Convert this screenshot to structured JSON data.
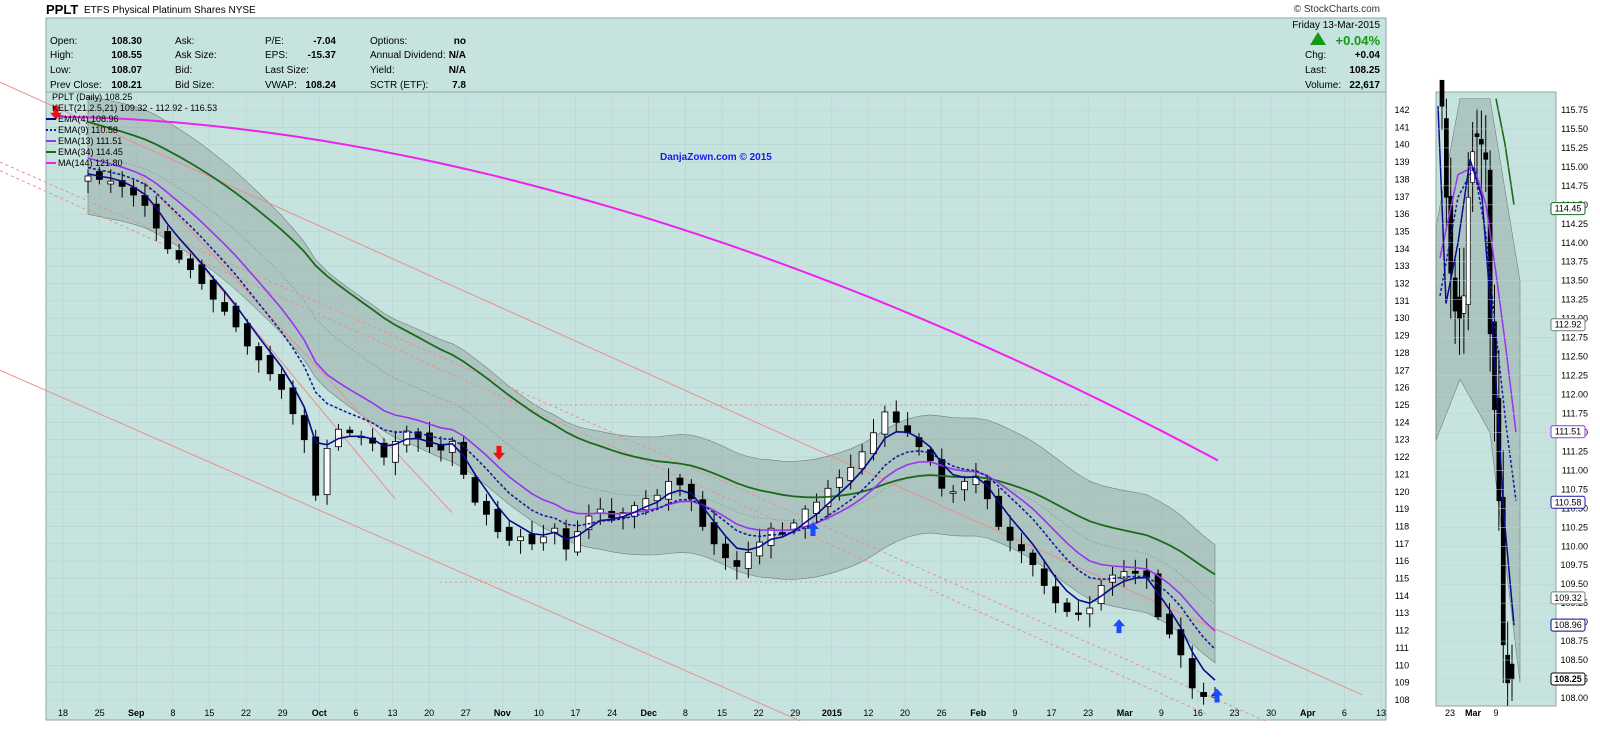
{
  "header": {
    "symbol": "PPLT",
    "name": "ETFS Physical Platinum Shares",
    "exchange": "NYSE",
    "source": "© StockCharts.com"
  },
  "quote": {
    "open_label": "Open:",
    "open": "108.30",
    "high_label": "High:",
    "high": "108.55",
    "low_label": "Low:",
    "low": "108.07",
    "prev_label": "Prev Close:",
    "prev": "108.21",
    "ask_label": "Ask:",
    "asksize_label": "Ask Size:",
    "bid_label": "Bid:",
    "bidsize_label": "Bid Size:",
    "pe_label": "P/E:",
    "pe": "-7.04",
    "eps_label": "EPS:",
    "eps": "-15.37",
    "lastsize_label": "Last Size:",
    "vwap_label": "VWAP:",
    "vwap": "108.24",
    "options_label": "Options:",
    "options": "no",
    "dividend_label": "Annual Dividend:",
    "dividend": "N/A",
    "yield_label": "Yield:",
    "yield": "N/A",
    "sctr_label": "SCTR (ETF):",
    "sctr": "7.8",
    "date": "Friday  13-Mar-2015",
    "change_pct": "+0.04%",
    "chg_label": "Chg:",
    "chg": "+0.04",
    "last_label": "Last:",
    "last": "108.25",
    "volume_label": "Volume:",
    "volume": "22,617"
  },
  "legend": {
    "title": "PPLT (Daily) 108.25",
    "kelt": "KELT(21,2.5,21) 109.32 - 112.92 - 116.53",
    "ema4": "EMA(4) 108.96",
    "ema9": "EMA(9) 110.58",
    "ema13": "EMA(13) 111.51",
    "ema34": "EMA(34) 114.45",
    "ma144": "MA(144) 121.80"
  },
  "watermark": "DanjaZown.com © 2015",
  "colors": {
    "bg": "#c7e3e0",
    "ema4": "#0a0a8c",
    "ema9": "#1a1a9c",
    "ema13": "#9933ee",
    "ema34": "#1a6a1a",
    "ma144": "#ee22ee",
    "channel": "#e8908a",
    "up_arrow": "#1a4cff",
    "down_arrow": "#ee1111",
    "band": "#8f9f9c"
  },
  "chart_data": [
    {
      "type": "candlestick",
      "title": "PPLT (Daily) 108.25",
      "ylim": [
        107.5,
        142.5
      ],
      "y_ticks": [
        108,
        109,
        110,
        111,
        112,
        113,
        114,
        115,
        116,
        117,
        118,
        119,
        120,
        121,
        122,
        123,
        124,
        125,
        126,
        127,
        128,
        129,
        130,
        131,
        132,
        133,
        134,
        135,
        136,
        137,
        138,
        139,
        140,
        141,
        142
      ],
      "x_ticks": [
        "18",
        "25",
        "Sep",
        "8",
        "15",
        "22",
        "29",
        "Oct",
        "6",
        "13",
        "20",
        "27",
        "Nov",
        "10",
        "17",
        "24",
        "Dec",
        "8",
        "15",
        "22",
        "29",
        "2015",
        "12",
        "20",
        "26",
        "Feb",
        "9",
        "17",
        "23",
        "Mar",
        "9",
        "16",
        "23",
        "30",
        "Apr",
        "6",
        "13"
      ],
      "close_series": [
        138.2,
        138.0,
        137.9,
        137.6,
        137.1,
        136.5,
        135.2,
        134.0,
        133.4,
        132.8,
        132.0,
        131.1,
        130.4,
        129.5,
        128.4,
        127.6,
        126.8,
        125.9,
        124.5,
        123.0,
        119.8,
        122.5,
        123.6,
        123.4,
        123.2,
        122.8,
        122.0,
        122.9,
        123.5,
        123.1,
        122.6,
        122.4,
        122.9,
        121.0,
        119.4,
        118.7,
        117.7,
        117.2,
        117.4,
        117.0,
        117.4,
        117.9,
        116.7,
        117.7,
        118.6,
        119.0,
        118.5,
        118.8,
        119.2,
        119.6,
        119.8,
        120.6,
        120.4,
        119.6,
        118.0,
        117.0,
        116.2,
        115.7,
        116.5,
        117.1,
        117.9,
        117.6,
        118.2,
        119.0,
        119.4,
        120.2,
        120.8,
        121.4,
        122.3,
        123.4,
        124.6,
        124.0,
        123.4,
        122.6,
        121.8,
        120.2,
        120.0,
        120.6,
        120.9,
        119.6,
        118.0,
        117.2,
        116.6,
        115.8,
        114.6,
        113.6,
        113.1,
        113.0,
        113.3,
        114.6,
        115.2,
        115.4,
        115.3,
        115.1,
        112.8,
        111.8,
        110.6,
        108.7,
        108.2,
        108.25
      ],
      "series": [
        {
          "name": "EMA(4)",
          "last": 108.96
        },
        {
          "name": "EMA(9)",
          "last": 110.58
        },
        {
          "name": "EMA(13)",
          "last": 111.51
        },
        {
          "name": "EMA(34)",
          "last": 114.45
        },
        {
          "name": "MA(144)",
          "last": 121.8
        },
        {
          "name": "KELT(21,2.5,21)",
          "values": [
            109.32,
            112.92,
            116.53
          ]
        }
      ]
    },
    {
      "type": "candlestick",
      "ylim": [
        107.8,
        116.0
      ],
      "y_ticks": [
        "108.00",
        "108.25",
        "108.50",
        "108.75",
        "109.00",
        "109.25",
        "109.50",
        "109.75",
        "110.00",
        "110.25",
        "110.50",
        "110.75",
        "111.00",
        "111.25",
        "111.50",
        "111.75",
        "112.00",
        "112.25",
        "112.50",
        "112.75",
        "113.00",
        "113.25",
        "113.50",
        "113.75",
        "114.00",
        "114.25",
        "114.50",
        "114.75",
        "115.00",
        "115.25",
        "115.50",
        "115.75"
      ],
      "x_ticks": [
        "23",
        "Mar",
        "9"
      ],
      "value_tags": [
        "114.45",
        "112.92",
        "111.51",
        "110.58",
        "109.32",
        "108.96",
        "108.25"
      ]
    }
  ]
}
